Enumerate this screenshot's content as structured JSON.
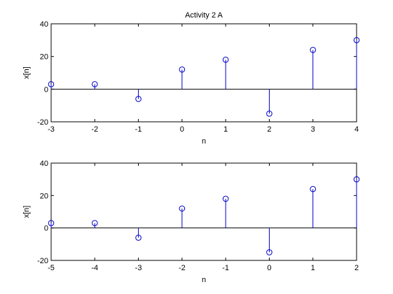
{
  "figure": {
    "background": "#ffffff",
    "stem_color": "#0000c8",
    "axis_color": "#000000"
  },
  "chart_data": [
    {
      "type": "stem",
      "title": "Activity 2 A",
      "xlabel": "n",
      "ylabel": "x[n]",
      "xlim": [
        -3,
        4
      ],
      "ylim": [
        -20,
        40
      ],
      "xticks": [
        "-3",
        "-2",
        "-1",
        "0",
        "1",
        "2",
        "3",
        "4"
      ],
      "yticks": [
        "-20",
        "0",
        "20",
        "40"
      ],
      "grid": false,
      "x": [
        -3,
        -2,
        -1,
        0,
        1,
        2,
        3,
        4
      ],
      "y": [
        3,
        3,
        -6,
        12,
        18,
        -15,
        24,
        30
      ]
    },
    {
      "type": "stem",
      "title": "",
      "xlabel": "n",
      "ylabel": "x[n]",
      "xlim": [
        -5,
        2
      ],
      "ylim": [
        -20,
        40
      ],
      "xticks": [
        "-5",
        "-4",
        "-3",
        "-2",
        "-1",
        "0",
        "1",
        "2"
      ],
      "yticks": [
        "-20",
        "0",
        "20",
        "40"
      ],
      "grid": false,
      "x": [
        -5,
        -4,
        -3,
        -2,
        -1,
        0,
        1,
        2
      ],
      "y": [
        3,
        3,
        -6,
        12,
        18,
        -15,
        24,
        30
      ]
    }
  ]
}
